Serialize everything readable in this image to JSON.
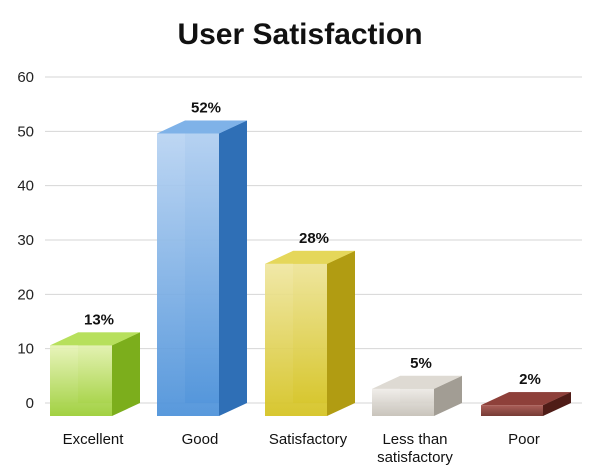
{
  "chart_data": {
    "type": "bar",
    "title": "User Satisfaction",
    "xlabel": "",
    "ylabel": "",
    "ylim": [
      0,
      60
    ],
    "yticks": [
      0,
      10,
      20,
      30,
      40,
      50,
      60
    ],
    "grid": true,
    "categories": [
      "Excellent",
      "Good",
      "Satisfactory",
      "Less than satisfactory",
      "Poor"
    ],
    "category_lines": [
      [
        "Excellent"
      ],
      [
        "Good"
      ],
      [
        "Satisfactory"
      ],
      [
        "Less than",
        "satisfactory"
      ],
      [
        "Poor"
      ]
    ],
    "values": [
      13,
      52,
      28,
      5,
      2
    ],
    "data_labels": [
      "13%",
      "52%",
      "28%",
      "5%",
      "2%"
    ],
    "colors": [
      "#9acd32",
      "#4a90d9",
      "#d4c21e",
      "#c4bfb6",
      "#6b2a24"
    ],
    "colors_light": [
      "#e6f3b5",
      "#b8d3f2",
      "#efe6a0",
      "#efece8",
      "#a4514a"
    ],
    "colors_side": [
      "#7cae1c",
      "#2f6fb6",
      "#b19c12",
      "#a29d94",
      "#4f1c17"
    ],
    "colors_top": [
      "#b7e05c",
      "#7fb2e8",
      "#e5d75a",
      "#dedad3",
      "#8e403a"
    ]
  }
}
